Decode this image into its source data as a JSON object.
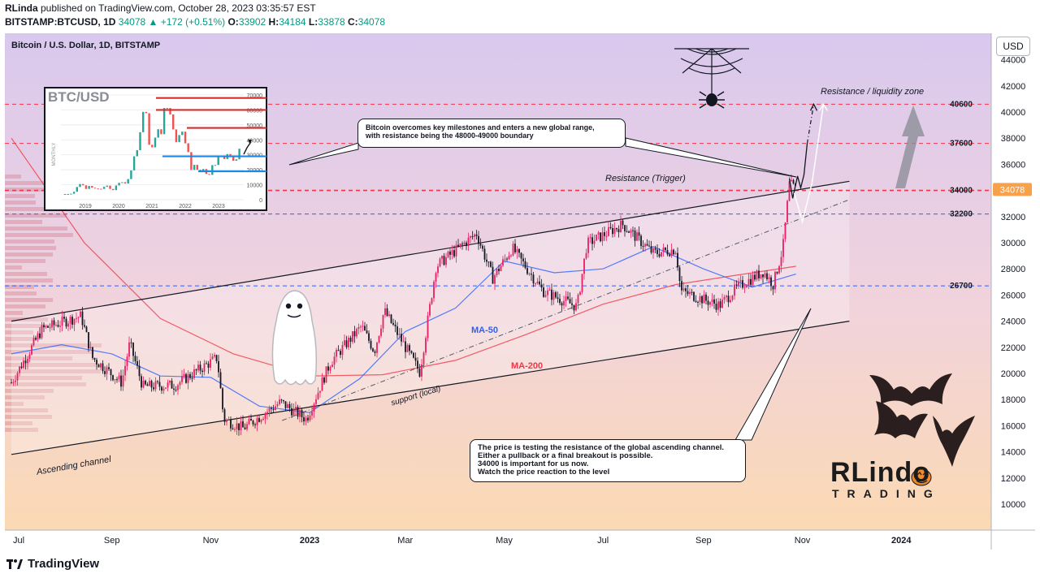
{
  "header": {
    "publisher": "RLinda",
    "published_text": " published on TradingView.com, October 28, 2023 03:35:57 EST",
    "symbol": "BITSTAMP:BTCUSD, 1D",
    "last": "34078",
    "change": "▲ +172 (+0.51%)",
    "o_label": "O:",
    "o": "33902",
    "h_label": "H:",
    "h": "34184",
    "l_label": "L:",
    "l": "33878",
    "c_label": "C:",
    "c": "34078"
  },
  "chart_title": "Bitcoin / U.S. Dollar, 1D, BITSTAMP",
  "currency_button": "USD",
  "footer_brand": "TradingView",
  "colors": {
    "up": "#089981",
    "candle_up": "#e91e63",
    "candle_down": "#131722",
    "ma50": "#2962ff",
    "ma200": "#f23645",
    "resistance": "#f23645",
    "support": "#2962ff",
    "bg_top": "#d9c8ee",
    "bg_bottom": "#fbd9b3"
  },
  "chart_data": {
    "type": "candlestick",
    "ylim": [
      8500,
      44500
    ],
    "y_ticks": [
      10000,
      12000,
      14000,
      16000,
      18000,
      20000,
      22000,
      24000,
      26000,
      28000,
      30000,
      32000,
      34000,
      36000,
      38000,
      40000,
      42000,
      44000
    ],
    "x_labels": [
      "Jul",
      "Sep",
      "Nov",
      "2023",
      "Mar",
      "May",
      "Jul",
      "Sep",
      "Nov",
      "2024"
    ],
    "levels": [
      {
        "label": "40600",
        "value": 40600,
        "style": "red-dashed"
      },
      {
        "label": "37600",
        "value": 37600,
        "style": "red-dashed"
      },
      {
        "label": "34000",
        "value": 34000,
        "style": "red-dashed"
      },
      {
        "label": "32200",
        "value": 32200,
        "style": "blue-dashed"
      },
      {
        "label": "26700",
        "value": 26700,
        "style": "blue-dashed"
      }
    ],
    "last_price": {
      "label": "34078",
      "value": 34078
    },
    "series_price": [
      [
        "2022-07-01",
        19300
      ],
      [
        "2022-07-20",
        23400
      ],
      [
        "2022-08-13",
        24400
      ],
      [
        "2022-08-20",
        21200
      ],
      [
        "2022-09-07",
        19300
      ],
      [
        "2022-09-12",
        22300
      ],
      [
        "2022-09-20",
        19000
      ],
      [
        "2022-10-10",
        19100
      ],
      [
        "2022-11-05",
        21200
      ],
      [
        "2022-11-09",
        16500
      ],
      [
        "2022-11-21",
        15800
      ],
      [
        "2022-12-14",
        17800
      ],
      [
        "2022-12-30",
        16500
      ],
      [
        "2023-01-14",
        20900
      ],
      [
        "2023-02-02",
        23600
      ],
      [
        "2023-02-10",
        21700
      ],
      [
        "2023-02-16",
        24800
      ],
      [
        "2023-03-10",
        20100
      ],
      [
        "2023-03-20",
        28200
      ],
      [
        "2023-04-14",
        30700
      ],
      [
        "2023-04-24",
        27300
      ],
      [
        "2023-05-06",
        29600
      ],
      [
        "2023-05-25",
        26300
      ],
      [
        "2023-06-15",
        25100
      ],
      [
        "2023-06-21",
        29900
      ],
      [
        "2023-07-13",
        31400
      ],
      [
        "2023-08-01",
        29200
      ],
      [
        "2023-08-15",
        29500
      ],
      [
        "2023-08-18",
        26300
      ],
      [
        "2023-09-11",
        25200
      ],
      [
        "2023-09-22",
        26600
      ],
      [
        "2023-10-08",
        27800
      ],
      [
        "2023-10-14",
        26800
      ],
      [
        "2023-10-20",
        29600
      ],
      [
        "2023-10-24",
        34500
      ],
      [
        "2023-10-28",
        34078
      ]
    ],
    "ma50": [
      [
        "2022-07-01",
        21500
      ],
      [
        "2022-08-01",
        22200
      ],
      [
        "2022-09-01",
        21500
      ],
      [
        "2022-10-01",
        19800
      ],
      [
        "2022-11-01",
        19700
      ],
      [
        "2022-12-01",
        17500
      ],
      [
        "2023-01-01",
        17000
      ],
      [
        "2023-02-01",
        19600
      ],
      [
        "2023-03-01",
        23200
      ],
      [
        "2023-04-01",
        25000
      ],
      [
        "2023-05-01",
        28600
      ],
      [
        "2023-06-01",
        27700
      ],
      [
        "2023-07-01",
        28000
      ],
      [
        "2023-08-01",
        29700
      ],
      [
        "2023-09-01",
        28000
      ],
      [
        "2023-10-01",
        26600
      ],
      [
        "2023-10-28",
        27600
      ]
    ],
    "ma200": [
      [
        "2022-07-01",
        38000
      ],
      [
        "2022-08-15",
        30000
      ],
      [
        "2022-10-01",
        24200
      ],
      [
        "2022-11-15",
        21500
      ],
      [
        "2023-01-01",
        19800
      ],
      [
        "2023-02-15",
        19900
      ],
      [
        "2023-04-01",
        21000
      ],
      [
        "2023-05-15",
        23000
      ],
      [
        "2023-07-01",
        25300
      ],
      [
        "2023-08-15",
        26800
      ],
      [
        "2023-09-15",
        27400
      ],
      [
        "2023-10-28",
        28200
      ]
    ],
    "channel_upper": [
      [
        "2022-07-01",
        24000
      ],
      [
        "2023-11-30",
        34700
      ]
    ],
    "channel_lower": [
      [
        "2022-07-01",
        13800
      ],
      [
        "2023-11-30",
        24000
      ]
    ],
    "support_local": [
      [
        "2022-12-15",
        16400
      ],
      [
        "2023-11-30",
        33300
      ]
    ],
    "projection_black": [
      [
        "2023-10-24",
        34900
      ],
      [
        "2023-10-26",
        33400
      ],
      [
        "2023-10-29",
        35100
      ],
      [
        "2023-10-31",
        34200
      ],
      [
        "2023-11-02",
        35200
      ],
      [
        "2023-11-04",
        37600
      ]
    ],
    "projection_black_dashed": [
      [
        "2023-11-04",
        37600
      ],
      [
        "2023-11-08",
        40600
      ]
    ],
    "projection_white": [
      [
        "2023-10-27",
        33800
      ],
      [
        "2023-11-01",
        31600
      ],
      [
        "2023-11-07",
        34600
      ],
      [
        "2023-11-14",
        40600
      ]
    ]
  },
  "annotations": {
    "resistance_trigger": "Resistance (Trigger)",
    "liquidity_zone": "Resistance / liquidity zone",
    "ascending_channel": "Ascending channel",
    "support_local": "support (local)",
    "ma50": "MA-50",
    "ma200": "MA-200",
    "note_top_1": "Bitcoin overcomes key milestones and enters a new global range,",
    "note_top_2": "with resistance being the 48000-49000 boundary",
    "note_bottom_1": "The price is testing the resistance of the global ascending channel.",
    "note_bottom_2": "Either a pullback or a final breakout is possible.",
    "note_bottom_3": "34000 is important for us now.",
    "note_bottom_4": "Watch the price reaction to the level"
  },
  "inset": {
    "title": "BTC/USD",
    "axis_side_label": "MONTHLY",
    "y_ticks": [
      "70000",
      "60000",
      "50000",
      "40000",
      "30000",
      "20000",
      "10000",
      "0"
    ],
    "x_labels": [
      "2019",
      "2020",
      "2021",
      "2022",
      "2023"
    ]
  },
  "logo": {
    "line1": "RLindo",
    "line2": "TRADING"
  }
}
